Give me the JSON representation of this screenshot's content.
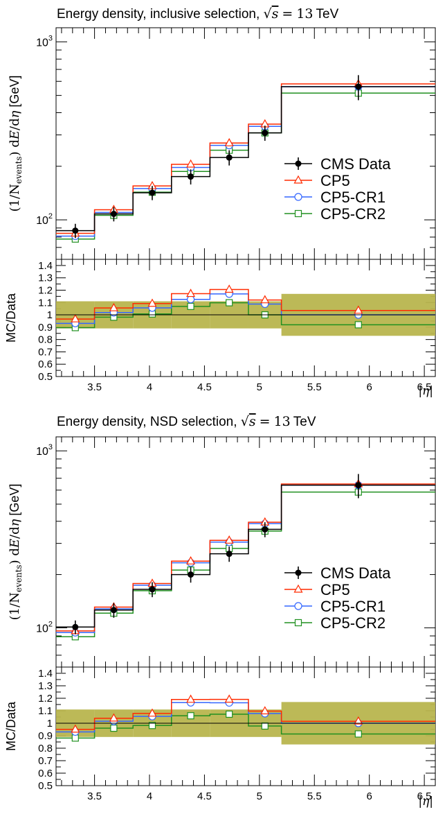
{
  "chart_data": [
    {
      "type": "line",
      "title": "Energy density, inclusive selection, √s = 13 TeV",
      "title_text": "Energy density, inclusive selection,",
      "title_math": {
        "sqrt_symbol": "√",
        "variable": "s",
        "equals": "=",
        "number": "13",
        "unit": "TeV"
      },
      "ylabel": {
        "prefix": "(1/N",
        "subscript": "events",
        "suffix": ") d",
        "E": "E",
        "slash": "/d",
        "eta": "η",
        "unit": "[GeV]"
      },
      "ratio_ylabel": "MC/Data",
      "xlabel": "|η|",
      "log_y": true,
      "ylim": [
        60,
        1200
      ],
      "ratio_ylim": [
        0.5,
        1.45
      ],
      "xlim": [
        3.15,
        6.6
      ],
      "y_tick_labels": [
        {
          "value": 100,
          "label": "10",
          "exp": "2"
        },
        {
          "value": 1000,
          "label": "10",
          "exp": "3"
        }
      ],
      "ratio_tick_labels": [
        "0.5",
        "0.6",
        "0.7",
        "0.8",
        "0.9",
        "1",
        "1.1",
        "1.2",
        "1.3",
        "1.4"
      ],
      "x_tick_labels": [
        "3.5",
        "4",
        "4.5",
        "5",
        "5.5",
        "6",
        "6.5"
      ],
      "bin_edges": [
        3.15,
        3.5,
        3.85,
        4.2,
        4.55,
        4.9,
        5.2,
        6.6
      ],
      "x_centers": [
        3.325,
        3.675,
        4.025,
        4.375,
        4.725,
        5.05,
        5.9
      ],
      "legend_position": "middle-right",
      "series": [
        {
          "name": "CMS Data",
          "color": "#000000",
          "marker": "filled-circle",
          "values": [
            87,
            108,
            142,
            175,
            224,
            308,
            560
          ],
          "errors": [
            8,
            10,
            13,
            17,
            22,
            30,
            90
          ]
        },
        {
          "name": "CP5",
          "color": "#ff2a00",
          "marker": "open-triangle",
          "values": [
            84,
            114,
            155,
            205,
            270,
            345,
            580
          ]
        },
        {
          "name": "CP5-CR1",
          "color": "#3366ff",
          "marker": "open-circle",
          "values": [
            81,
            110,
            150,
            197,
            262,
            335,
            560
          ]
        },
        {
          "name": "CP5-CR2",
          "color": "#209020",
          "marker": "open-square",
          "values": [
            78,
            106,
            143,
            187,
            246,
            308,
            515
          ]
        }
      ],
      "ratio_band": [
        0.11,
        0.11,
        0.11,
        0.11,
        0.11,
        0.11,
        0.17
      ]
    },
    {
      "type": "line",
      "title": "Energy density, NSD selection, √s = 13 TeV",
      "title_text": "Energy density, NSD selection,",
      "title_math": {
        "sqrt_symbol": "√",
        "variable": "s",
        "equals": "=",
        "number": "13",
        "unit": "TeV"
      },
      "ylabel": {
        "prefix": "(1/N",
        "subscript": "events",
        "suffix": ") d",
        "E": "E",
        "slash": "/d",
        "eta": "η",
        "unit": "[GeV]"
      },
      "ratio_ylabel": "MC/Data",
      "xlabel": "|η|",
      "log_y": true,
      "ylim": [
        60,
        1200
      ],
      "ratio_ylim": [
        0.5,
        1.45
      ],
      "xlim": [
        3.15,
        6.6
      ],
      "y_tick_labels": [
        {
          "value": 100,
          "label": "10",
          "exp": "2"
        },
        {
          "value": 1000,
          "label": "10",
          "exp": "3"
        }
      ],
      "ratio_tick_labels": [
        "0.5",
        "0.6",
        "0.7",
        "0.8",
        "0.9",
        "1",
        "1.1",
        "1.2",
        "1.3",
        "1.4"
      ],
      "x_tick_labels": [
        "3.5",
        "4",
        "4.5",
        "5",
        "5.5",
        "6",
        "6.5"
      ],
      "bin_edges": [
        3.15,
        3.5,
        3.85,
        4.2,
        4.55,
        4.9,
        5.2,
        6.6
      ],
      "x_centers": [
        3.325,
        3.675,
        4.025,
        4.375,
        4.725,
        5.05,
        5.9
      ],
      "legend_position": "middle-right",
      "series": [
        {
          "name": "CMS Data",
          "color": "#000000",
          "marker": "filled-circle",
          "values": [
            101,
            126,
            165,
            200,
            262,
            360,
            640
          ],
          "errors": [
            9,
            12,
            16,
            20,
            26,
            35,
            100
          ]
        },
        {
          "name": "CP5",
          "color": "#ff2a00",
          "marker": "open-triangle",
          "values": [
            96,
            131,
            178,
            238,
            312,
            395,
            650
          ]
        },
        {
          "name": "CP5-CR1",
          "color": "#3366ff",
          "marker": "open-circle",
          "values": [
            94,
            128,
            174,
            233,
            305,
            388,
            640
          ]
        },
        {
          "name": "CP5-CR2",
          "color": "#209020",
          "marker": "open-square",
          "values": [
            89,
            121,
            162,
            212,
            281,
            352,
            585
          ]
        }
      ],
      "ratio_band": [
        0.11,
        0.11,
        0.11,
        0.11,
        0.11,
        0.11,
        0.17
      ]
    }
  ]
}
